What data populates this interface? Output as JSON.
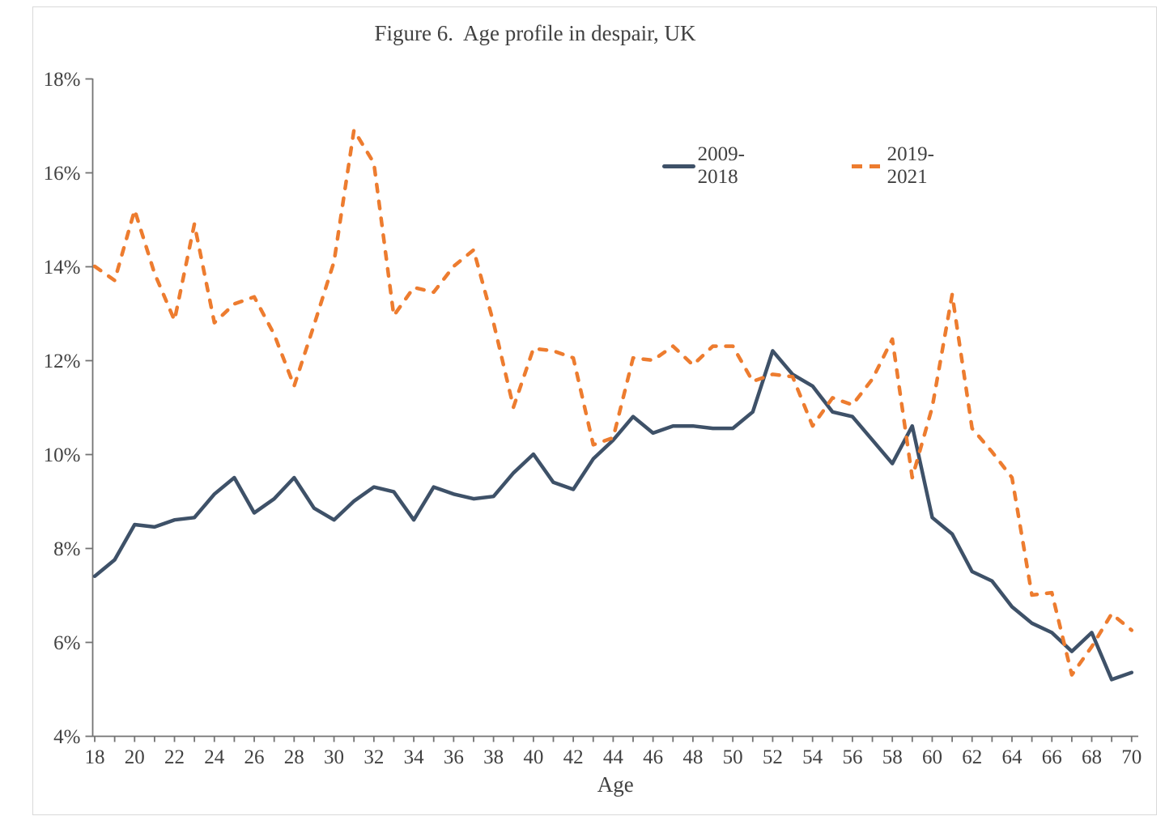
{
  "figure": {
    "title": "Figure 6.  Age profile in despair, UK"
  },
  "legend": {
    "items": [
      {
        "label": "2009-2018",
        "style": "solid"
      },
      {
        "label": "2019-2021",
        "style": "dashed"
      }
    ]
  },
  "chart_data": {
    "type": "line",
    "title": "Figure 6.  Age profile in despair, UK",
    "xlabel": "Age",
    "ylabel": "",
    "xlim": [
      18,
      70
    ],
    "ylim": [
      4,
      18
    ],
    "grid": false,
    "legend_position": "upper-right-inside",
    "y_ticks": [
      {
        "value": 18,
        "label": "18%"
      },
      {
        "value": 16,
        "label": "16%"
      },
      {
        "value": 14,
        "label": "14%"
      },
      {
        "value": 12,
        "label": "12%"
      },
      {
        "value": 10,
        "label": "10%"
      },
      {
        "value": 8,
        "label": "8%"
      },
      {
        "value": 6,
        "label": "6%"
      },
      {
        "value": 4,
        "label": "4%"
      }
    ],
    "x_tick_minor_step": 1,
    "x_tick_label_step": 2,
    "x": [
      18,
      19,
      20,
      21,
      22,
      23,
      24,
      25,
      26,
      27,
      28,
      29,
      30,
      31,
      32,
      33,
      34,
      35,
      36,
      37,
      38,
      39,
      40,
      41,
      42,
      43,
      44,
      45,
      46,
      47,
      48,
      49,
      50,
      51,
      52,
      53,
      54,
      55,
      56,
      57,
      58,
      59,
      60,
      61,
      62,
      63,
      64,
      65,
      66,
      67,
      68,
      69,
      70
    ],
    "series": [
      {
        "name": "2009-2018",
        "color": "#3E5168",
        "dash": "solid",
        "values": [
          7.4,
          7.75,
          8.5,
          8.45,
          8.6,
          8.65,
          9.15,
          9.5,
          8.75,
          9.05,
          9.5,
          8.85,
          8.6,
          9.0,
          9.3,
          9.2,
          8.6,
          9.3,
          9.15,
          9.05,
          9.1,
          9.6,
          10.0,
          9.4,
          9.25,
          9.9,
          10.3,
          10.8,
          10.45,
          10.6,
          10.6,
          10.55,
          10.55,
          10.9,
          12.2,
          11.7,
          11.45,
          10.9,
          10.8,
          10.3,
          9.8,
          10.6,
          8.65,
          8.3,
          7.5,
          7.3,
          6.75,
          6.4,
          6.2,
          5.8,
          6.2,
          5.2,
          5.35
        ]
      },
      {
        "name": "2019-2021",
        "color": "#ED7C2F",
        "dash": "dashed",
        "values": [
          14.0,
          13.7,
          15.2,
          13.85,
          12.85,
          14.9,
          12.8,
          13.2,
          13.35,
          12.55,
          11.45,
          12.75,
          14.1,
          16.9,
          16.2,
          12.95,
          13.55,
          13.45,
          14.0,
          14.35,
          12.8,
          11.0,
          12.25,
          12.2,
          12.05,
          10.2,
          10.35,
          12.05,
          12.0,
          12.3,
          11.9,
          12.3,
          12.3,
          11.55,
          11.7,
          11.65,
          10.6,
          11.2,
          11.05,
          11.6,
          12.45,
          9.5,
          11.0,
          13.4,
          10.55,
          10.05,
          9.5,
          7.0,
          7.05,
          5.3,
          5.9,
          6.6,
          6.25
        ]
      }
    ]
  }
}
